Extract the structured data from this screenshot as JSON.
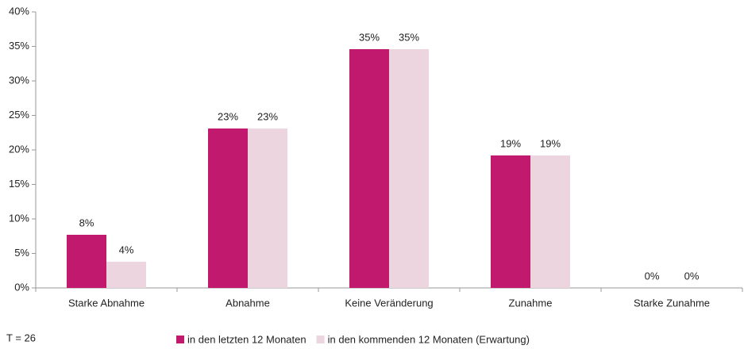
{
  "chart_data": {
    "type": "bar",
    "categories": [
      "Starke Abnahme",
      "Abnahme",
      "Keine Veränderung",
      "Zunahme",
      "Starke Zunahme"
    ],
    "series": [
      {
        "name": "in den letzten 12 Monaten",
        "color": "#c0196e",
        "values": [
          7.7,
          23.1,
          34.6,
          19.2,
          0
        ],
        "value_labels": [
          "8%",
          "23%",
          "35%",
          "19%",
          "0%"
        ]
      },
      {
        "name": "in den kommenden 12 Monaten (Erwartung)",
        "color": "#ecd5df",
        "values": [
          3.8,
          23.1,
          34.6,
          19.2,
          0
        ],
        "value_labels": [
          "4%",
          "23%",
          "35%",
          "19%",
          "0%"
        ]
      }
    ],
    "ylim": [
      0,
      40
    ],
    "yticks": [
      {
        "value": 0,
        "label": "0%"
      },
      {
        "value": 5,
        "label": "5%"
      },
      {
        "value": 10,
        "label": "10%"
      },
      {
        "value": 15,
        "label": "15%"
      },
      {
        "value": 20,
        "label": "20%"
      },
      {
        "value": 25,
        "label": "25%"
      },
      {
        "value": 30,
        "label": "30%"
      },
      {
        "value": 35,
        "label": "35%"
      },
      {
        "value": 40,
        "label": "40%"
      }
    ],
    "grid": false,
    "annotation": "T = 26",
    "legend": "bottom"
  }
}
